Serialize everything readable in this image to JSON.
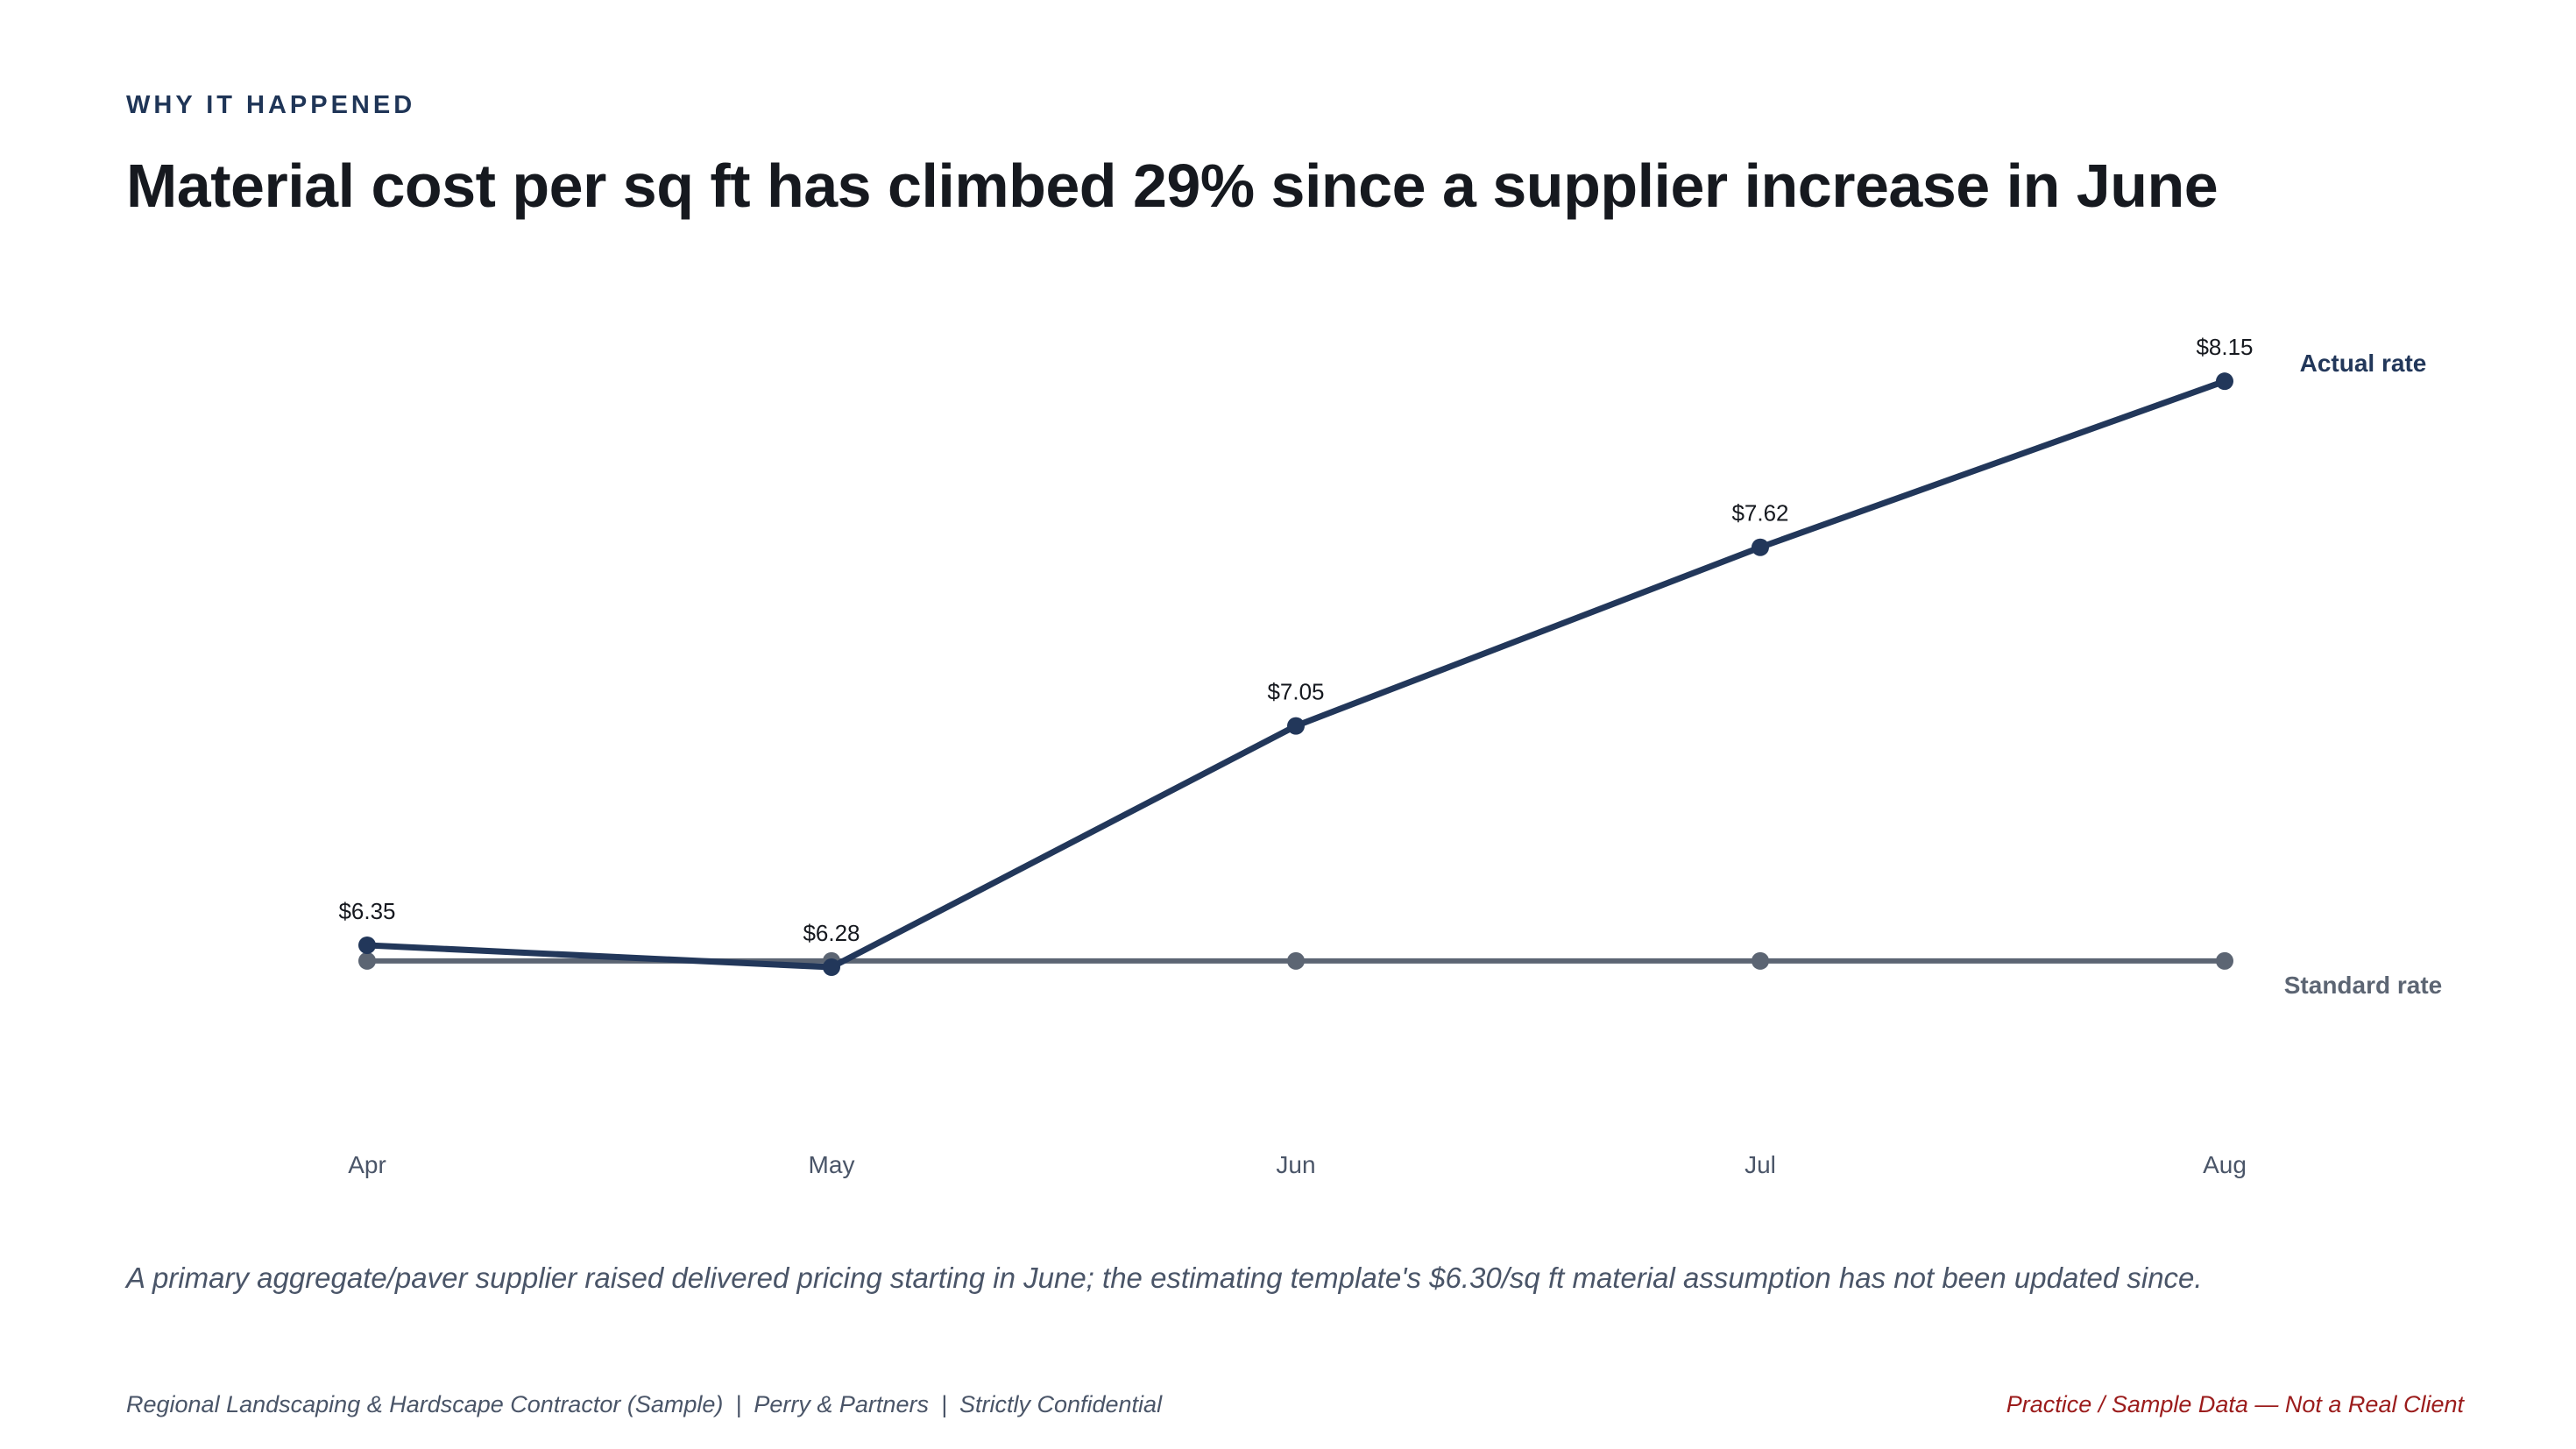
{
  "slide": {
    "eyebrow": "WHY IT HAPPENED",
    "headline": "Material cost per sq ft has climbed 29% since a supplier increase in June",
    "caption": "A primary aggregate/paver supplier raised delivered pricing starting in June; the estimating template's $6.30/sq ft material assumption has not been updated since.",
    "footer": {
      "client": "Regional Landscaping & Hardscape Contractor (Sample)",
      "firm": "Perry & Partners",
      "confidentiality": "Strictly Confidential",
      "separator": "|",
      "disclaimer": "Practice / Sample Data — Not a Real Client"
    }
  },
  "chart_data": {
    "type": "line",
    "title": "",
    "xlabel": "",
    "ylabel": "",
    "categories": [
      "Apr",
      "May",
      "Jun",
      "Jul",
      "Aug"
    ],
    "ylim": [
      5.5,
      8.5
    ],
    "grid": false,
    "legend": "direct labels at right end of each line",
    "series": [
      {
        "name": "Actual rate",
        "values": [
          6.35,
          6.28,
          7.05,
          7.62,
          8.15
        ],
        "labels": [
          "$6.35",
          "$6.28",
          "$7.05",
          "$7.62",
          "$8.15"
        ],
        "color": "#22375a"
      },
      {
        "name": "Standard rate",
        "values": [
          6.3,
          6.3,
          6.3,
          6.3,
          6.3
        ],
        "color": "#5c6573"
      }
    ]
  }
}
